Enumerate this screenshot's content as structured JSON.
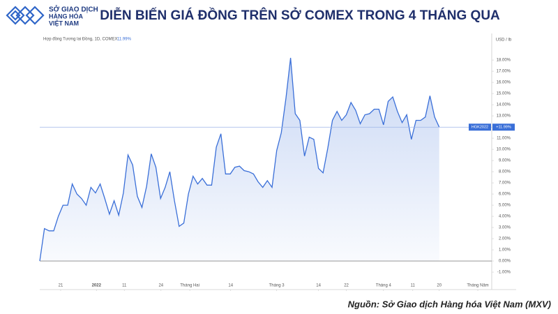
{
  "chart_data": {
    "type": "area",
    "logo": [
      "SỞ GIAO DỊCH",
      "HÀNG HÓA",
      "VIỆT NAM"
    ],
    "title": "DIỄN BIẾN GIÁ ĐỒNG TRÊN SỞ COMEX TRONG 4 THÁNG QUA",
    "subtitle": "Hợp đồng Tương lai Đồng, 1D, COMEX",
    "subtitle_value": {
      "value": 11.99,
      "label": "11.99%"
    },
    "unit": "USD / lb",
    "last_tag": {
      "name": "HGK2022",
      "value": 11.99,
      "label": "+11.99%"
    },
    "source": "Nguồn: Sở Giao dịch Hàng hóa Việt Nam (MXV)",
    "color": "#3a6fd8",
    "values": [
      0,
      2.9,
      2.7,
      2.7,
      4.0,
      5.0,
      5.0,
      6.9,
      6.0,
      5.6,
      5.0,
      6.6,
      6.1,
      6.9,
      5.6,
      4.2,
      5.4,
      4.1,
      6.1,
      9.5,
      8.6,
      5.8,
      4.8,
      6.7,
      9.6,
      8.4,
      5.6,
      6.6,
      8.0,
      5.4,
      3.1,
      3.4,
      6.0,
      7.6,
      6.9,
      7.4,
      6.8,
      6.8,
      10.2,
      11.4,
      7.8,
      7.8,
      8.4,
      8.5,
      8.1,
      8.0,
      7.8,
      7.1,
      6.6,
      7.2,
      6.6,
      9.9,
      11.5,
      14.6,
      18.2,
      13.2,
      12.6,
      9.4,
      11.1,
      10.9,
      8.3,
      7.9,
      10.1,
      12.6,
      13.4,
      12.6,
      13.1,
      14.2,
      13.5,
      12.3,
      13.1,
      13.2,
      13.6,
      13.6,
      12.2,
      14.3,
      14.7,
      13.4,
      12.4,
      13.1,
      10.9,
      12.6,
      12.6,
      12.9,
      14.8,
      12.9,
      11.99
    ],
    "xlim": [
      0,
      97.3
    ],
    "xticks": [
      {
        "value": 4.5,
        "label": "21"
      },
      {
        "value": 12.2,
        "label": "2022"
      },
      {
        "value": 18.2,
        "label": "11"
      },
      {
        "value": 26.1,
        "label": "24"
      },
      {
        "value": 32.3,
        "label": "Tháng Hai"
      },
      {
        "value": 41.1,
        "label": "14"
      },
      {
        "value": 51.0,
        "label": "Tháng 3"
      },
      {
        "value": 60.0,
        "label": "14"
      },
      {
        "value": 66.0,
        "label": "22"
      },
      {
        "value": 74.0,
        "label": "Tháng 4"
      },
      {
        "value": 80.3,
        "label": "11"
      },
      {
        "value": 86,
        "label": "20"
      },
      {
        "value": 94.3,
        "label": "Tháng Năm"
      }
    ],
    "ylim": [
      -2.56,
      20.38
    ],
    "yticks": [
      {
        "value": -1,
        "label": "-1.00%"
      },
      {
        "value": 0,
        "label": "0.00%"
      },
      {
        "value": 1,
        "label": "1.00%"
      },
      {
        "value": 2,
        "label": "2.00%"
      },
      {
        "value": 3,
        "label": "3.00%"
      },
      {
        "value": 4,
        "label": "4.00%"
      },
      {
        "value": 5,
        "label": "5.00%"
      },
      {
        "value": 6,
        "label": "6.00%"
      },
      {
        "value": 7,
        "label": "7.00%"
      },
      {
        "value": 8,
        "label": "8.00%"
      },
      {
        "value": 9,
        "label": "9.00%"
      },
      {
        "value": 10,
        "label": "10.00%"
      },
      {
        "value": 11,
        "label": "11.00%"
      },
      {
        "value": 12,
        "label": "12.00%"
      },
      {
        "value": 13,
        "label": "13.00%"
      },
      {
        "value": 14,
        "label": "14.00%"
      },
      {
        "value": 15,
        "label": "15.00%"
      },
      {
        "value": 16,
        "label": "16.00%"
      },
      {
        "value": 17,
        "label": "17.00%"
      },
      {
        "value": 18,
        "label": "18.00%"
      }
    ]
  }
}
